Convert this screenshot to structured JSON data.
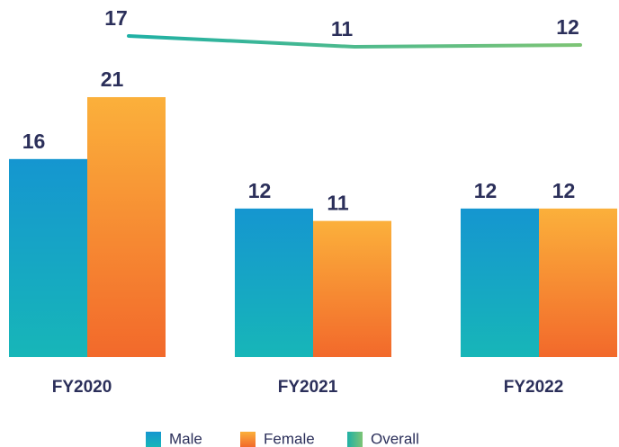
{
  "chart_data": {
    "type": "bar",
    "categories": [
      "FY2020",
      "FY2021",
      "FY2022"
    ],
    "series": [
      {
        "name": "Male",
        "color": [
          "#1596d0",
          "#17b6b8"
        ],
        "values": [
          16,
          12,
          12
        ]
      },
      {
        "name": "Female",
        "color": [
          "#fbb03b",
          "#f2692b"
        ],
        "values": [
          21,
          11,
          12
        ]
      },
      {
        "name": "Overall",
        "type": "line",
        "axis": "y2",
        "color": [
          "#1fb0a5",
          "#7dc475"
        ],
        "values": [
          17,
          11,
          12
        ]
      }
    ],
    "ylim": [
      0,
      28
    ],
    "y2lim": [
      -160,
      31
    ]
  }
}
